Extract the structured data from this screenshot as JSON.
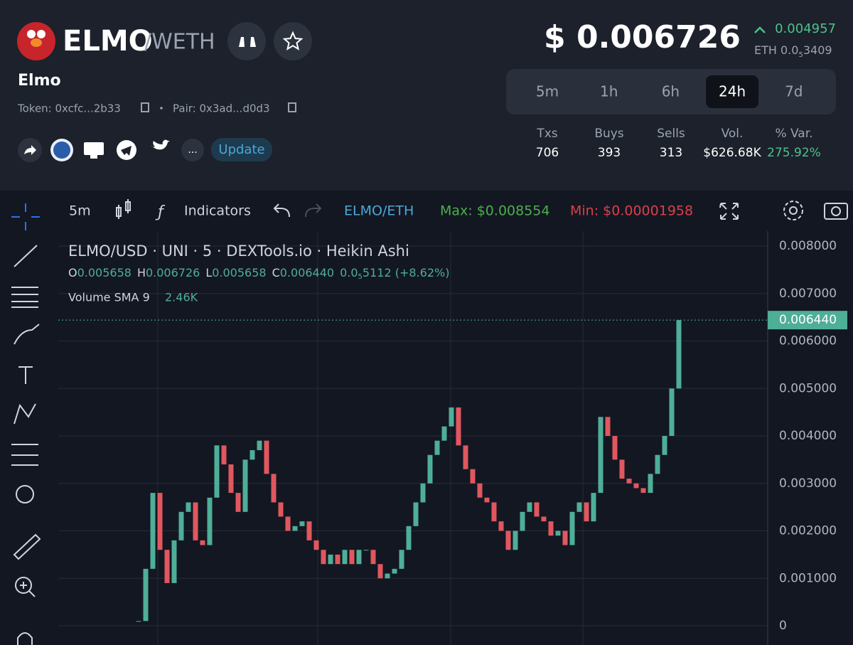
{
  "header": {
    "symbol": "ELMO",
    "quote": "/WETH",
    "name": "Elmo",
    "token": "Token: 0xcfc...2b33",
    "pair": "Pair: 0x3ad...d0d3",
    "more": "...",
    "update": "Update"
  },
  "price": {
    "usd": "$ 0.006726",
    "change": "0.004957",
    "eth": "ETH 0.0",
    "eth_zeros": "5",
    "eth_digits": "3409"
  },
  "timeframes": {
    "options": [
      "5m",
      "1h",
      "6h",
      "24h",
      "7d"
    ],
    "active": "24h"
  },
  "stats": {
    "labels": [
      "Txs",
      "Buys",
      "Sells",
      "Vol.",
      "% Var."
    ],
    "values": [
      "706",
      "393",
      "313",
      "$626.68K",
      "275.92%"
    ]
  },
  "toolbar": {
    "interval": "5m",
    "indicators": "Indicators",
    "pair": "ELMO/ETH",
    "max": "Max: $0.008554",
    "min": "Min: $0.00001958"
  },
  "legend": {
    "title": "ELMO/USD · UNI · 5 · DEXTools.io · Heikin Ashi",
    "o_label": "O",
    "o": "0.005658",
    "h_label": "H",
    "h": "0.006726",
    "l_label": "L",
    "l": "0.005658",
    "c_label": "C",
    "c": "0.006440",
    "change": "0.0",
    "change_zeros": "5",
    "change_rest": "5112 (+8.62%)",
    "volume_label": "Volume SMA 9",
    "volume": "2.46K"
  },
  "chart_data": {
    "type": "candlestick",
    "up_color": "#4fae97",
    "down_color": "#e0575f",
    "values": [
      0.0001,
      0.0012,
      0.0028,
      0.0016,
      0.0009,
      0.0018,
      0.0024,
      0.0026,
      0.0018,
      0.0017,
      0.0027,
      0.0038,
      0.0034,
      0.0028,
      0.0024,
      0.0035,
      0.0037,
      0.0039,
      0.0032,
      0.0026,
      0.0023,
      0.002,
      0.0021,
      0.0022,
      0.0018,
      0.0016,
      0.0013,
      0.0015,
      0.0013,
      0.0016,
      0.0013,
      0.0016,
      0.0016,
      0.0013,
      0.001,
      0.0011,
      0.0012,
      0.0016,
      0.0021,
      0.0026,
      0.003,
      0.0036,
      0.0039,
      0.0042,
      0.0046,
      0.0038,
      0.0033,
      0.003,
      0.0027,
      0.0026,
      0.0022,
      0.002,
      0.0016,
      0.002,
      0.0024,
      0.0026,
      0.0023,
      0.0022,
      0.0019,
      0.002,
      0.0017,
      0.0024,
      0.0026,
      0.0022,
      0.0028,
      0.0044,
      0.004,
      0.0035,
      0.0031,
      0.003,
      0.0029,
      0.0028,
      0.0032,
      0.0036,
      0.004,
      0.005,
      0.00644
    ],
    "ylim": [
      0,
      0.008
    ],
    "yticks": [
      0,
      {
        "value": 0.001,
        "label": "0.001000"
      },
      {
        "value": 0.002,
        "label": "0.002000"
      },
      {
        "value": 0.003,
        "label": "0.003000"
      },
      {
        "value": 0.004,
        "label": "0.004000"
      },
      {
        "value": 0.005,
        "label": "0.005000"
      },
      {
        "value": 0.006,
        "label": "0.006000"
      },
      {
        "value": 0.007,
        "label": "0.007000"
      },
      {
        "value": 0.008,
        "label": "0.008000"
      }
    ],
    "last_price": {
      "value": 0.00644,
      "label": "0.006440"
    },
    "grid": true
  }
}
